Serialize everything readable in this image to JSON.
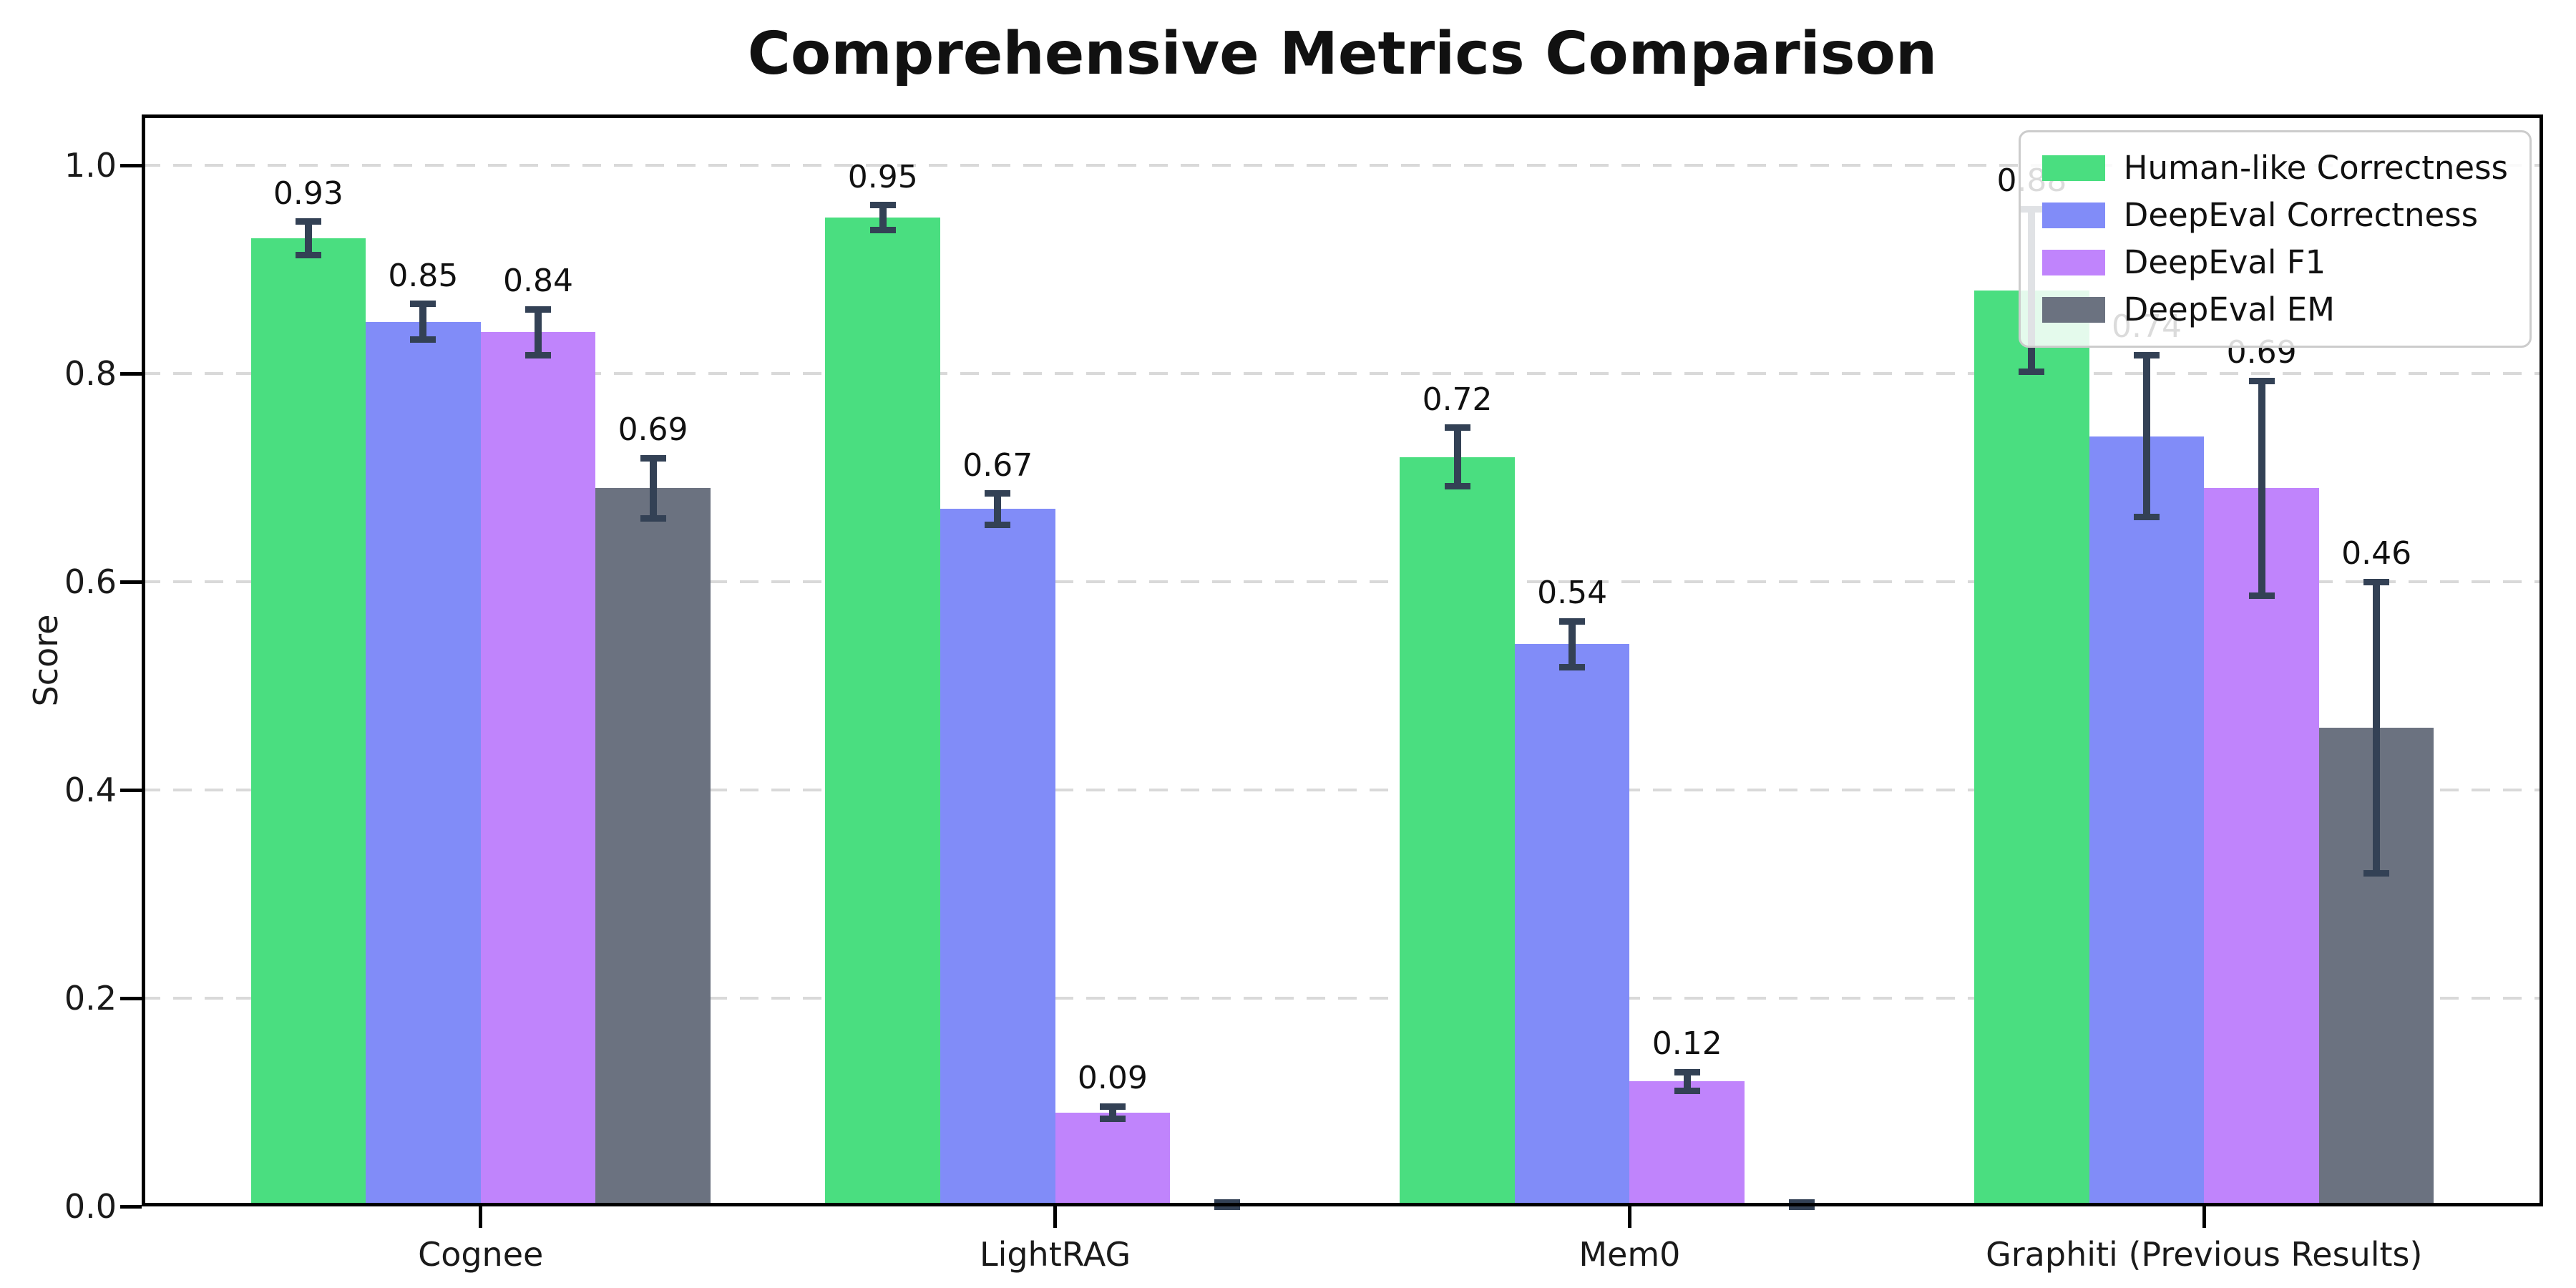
{
  "chart_data": {
    "type": "bar",
    "title": "Comprehensive Metrics Comparison",
    "ylabel": "Score",
    "categories": [
      "Cognee",
      "LightRAG",
      "Mem0",
      "Graphiti (Previous Results)"
    ],
    "series": [
      {
        "name": "Human-like Correctness",
        "color": "#4ade80",
        "values": [
          0.93,
          0.95,
          0.72,
          0.88
        ],
        "errors": [
          0.016,
          0.012,
          0.028,
          0.078
        ],
        "labels": [
          "0.93",
          "0.95",
          "0.72",
          "0.88"
        ]
      },
      {
        "name": "DeepEval Correctness",
        "color": "#818cf8",
        "values": [
          0.85,
          0.67,
          0.54,
          0.74
        ],
        "errors": [
          0.017,
          0.015,
          0.022,
          0.078
        ],
        "labels": [
          "0.85",
          "0.67",
          "0.54",
          "0.74"
        ]
      },
      {
        "name": "DeepEval F1",
        "color": "#c084fc",
        "values": [
          0.84,
          0.09,
          0.12,
          0.69
        ],
        "errors": [
          0.022,
          0.006,
          0.009,
          0.103
        ],
        "labels": [
          "0.84",
          "0.09",
          "0.12",
          "0.69"
        ]
      },
      {
        "name": "DeepEval EM",
        "color": "#6b7280",
        "values": [
          0.69,
          0.0,
          0.0,
          0.46
        ],
        "errors": [
          0.029,
          0.004,
          0.004,
          0.14
        ],
        "labels": [
          "0.69",
          "",
          "",
          "0.46"
        ]
      }
    ],
    "yticks": [
      0.0,
      0.2,
      0.4,
      0.6,
      0.8,
      1.0
    ],
    "ytick_labels": [
      "0.0",
      "0.2",
      "0.4",
      "0.6",
      "0.8",
      "1.0"
    ],
    "ylim": [
      0,
      1.049
    ],
    "xlim": [
      -0.59,
      3.59
    ],
    "bar_width": 0.2,
    "group_offsets": [
      -0.3,
      -0.1,
      0.1,
      0.3
    ],
    "grid": {
      "axis": "y",
      "style": "dashed",
      "color": "#d9d9d9"
    },
    "errorbar_color": "#334155",
    "legend_position": "upper right",
    "background_color": "#ffffff"
  }
}
